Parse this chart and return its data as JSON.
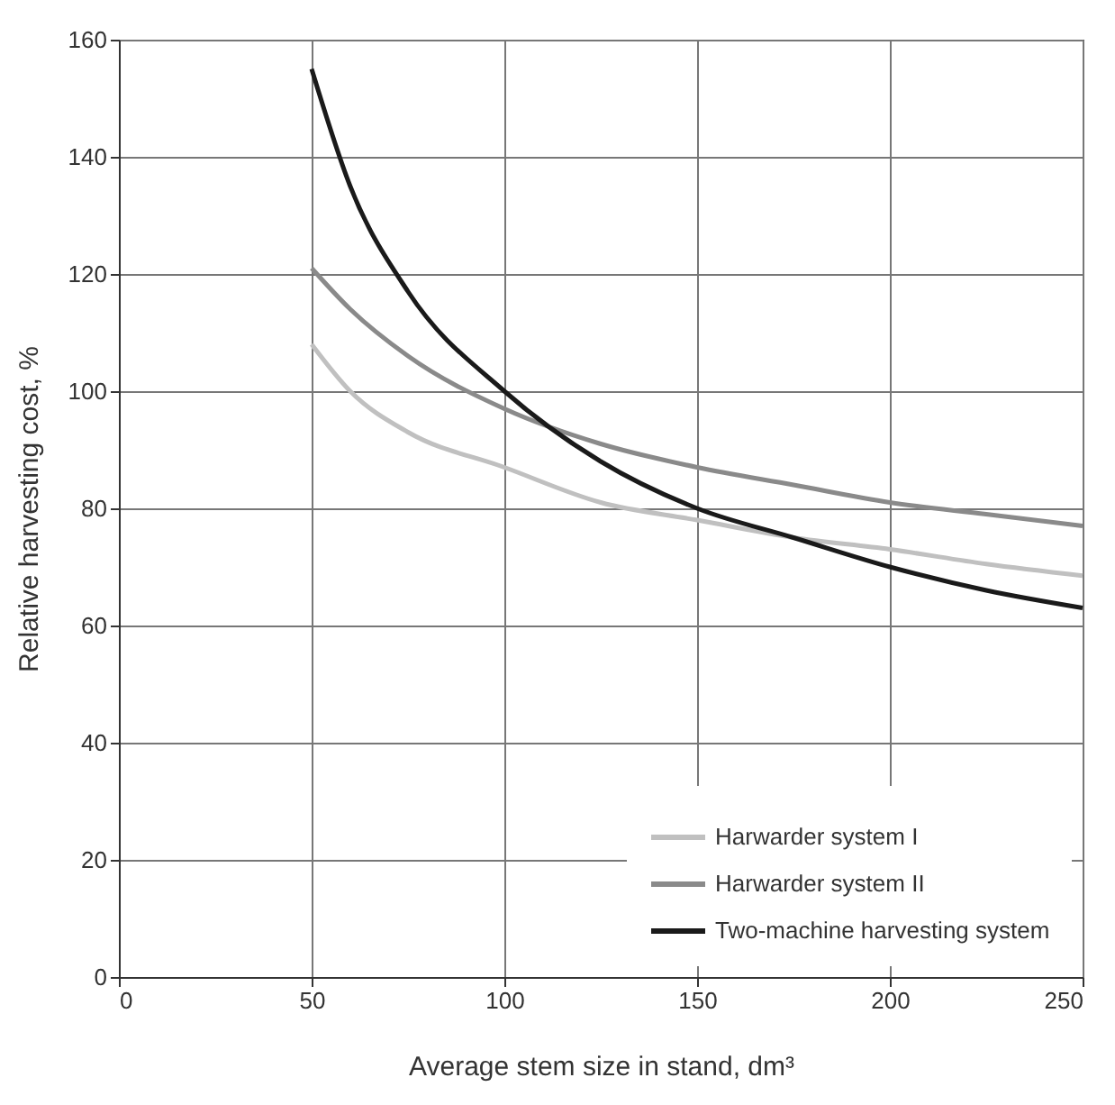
{
  "chart_data": {
    "type": "line",
    "xlabel": "Average stem size in stand, dm³",
    "ylabel": "Relative harvesting cost, %",
    "xlim": [
      0,
      250
    ],
    "xticks": [
      0,
      50,
      100,
      150,
      200,
      250
    ],
    "ylim": [
      0,
      160
    ],
    "yticks": [
      0,
      20,
      40,
      60,
      80,
      100,
      120,
      140,
      160
    ],
    "grid": true,
    "legend": "bottom right",
    "line_style": "solid",
    "marker": "none",
    "x": [
      50,
      60,
      75,
      100,
      125,
      150,
      175,
      200,
      225,
      250
    ],
    "series": [
      {
        "name": "Harwarder system I",
        "color": "#c0c0c0",
        "values": [
          108,
          100,
          93,
          87,
          81,
          78,
          75,
          73,
          70.5,
          68.5
        ]
      },
      {
        "name": "Harwarder system II",
        "color": "#8a8a8a",
        "values": [
          121,
          114,
          106,
          97,
          91,
          87,
          84,
          81,
          79,
          77
        ]
      },
      {
        "name": "Two-machine harvesting system",
        "color": "#1a1a1a",
        "values": [
          155,
          135,
          117,
          100,
          88,
          80,
          75,
          70,
          66,
          63
        ]
      }
    ]
  }
}
